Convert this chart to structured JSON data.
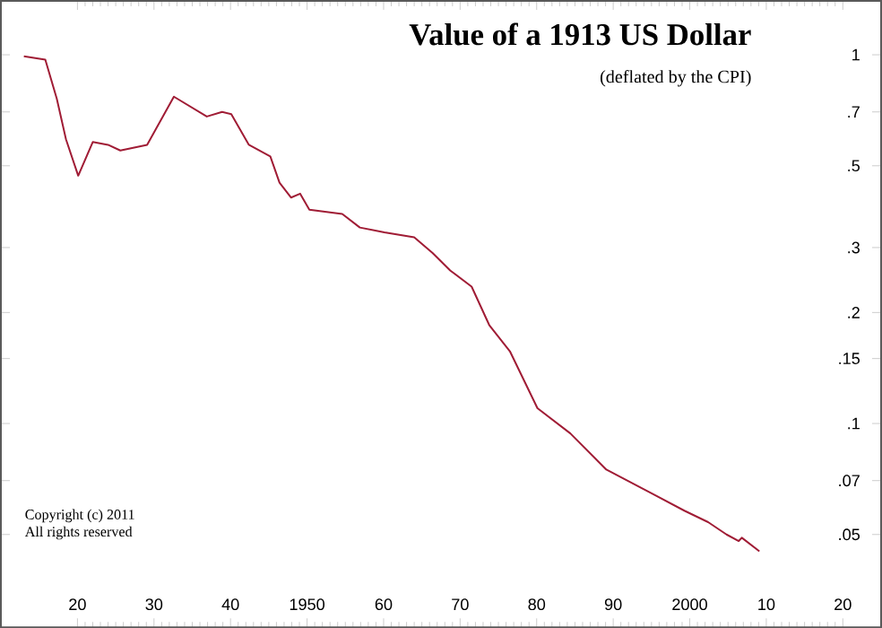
{
  "chart_data": {
    "type": "line",
    "title": "Value of a 1913 US Dollar",
    "subtitle": "(deflated by the CPI)",
    "annotations": [
      "Copyright (c) 2011",
      "All rights reserved"
    ],
    "x": [
      1913,
      1915.8,
      1917.3,
      1918.5,
      1920.1,
      1922,
      1924,
      1925.6,
      1929.1,
      1932.6,
      1936.9,
      1938.9,
      1940.1,
      1942.4,
      1945.2,
      1946.4,
      1947.9,
      1949.1,
      1950.3,
      1954.6,
      1956.9,
      1960.1,
      1964,
      1966.4,
      1968.7,
      1971.5,
      1973.8,
      1976.5,
      1980.1,
      1984.4,
      1989.1,
      1995.4,
      1999.3,
      2002.4,
      2004.8,
      2006.4,
      2006.8,
      2009.1
    ],
    "series": [
      {
        "color": "#a01c35",
        "values": [
          0.99,
          0.97,
          0.76,
          0.59,
          0.47,
          0.58,
          0.57,
          0.55,
          0.57,
          0.77,
          0.68,
          0.7,
          0.69,
          0.57,
          0.53,
          0.45,
          0.41,
          0.42,
          0.38,
          0.37,
          0.34,
          0.33,
          0.32,
          0.29,
          0.26,
          0.235,
          0.185,
          0.157,
          0.11,
          0.094,
          0.075,
          0.064,
          0.058,
          0.054,
          0.05,
          0.048,
          0.049,
          0.045
        ]
      }
    ],
    "log": "y",
    "xlim": [
      1910,
      2025
    ],
    "ylim": [
      0.028,
      1.4
    ],
    "xticks": [
      {
        "value": 1920,
        "label": "20"
      },
      {
        "value": 1930,
        "label": "30"
      },
      {
        "value": 1940,
        "label": "40"
      },
      1950,
      {
        "value": 1960,
        "label": "60"
      },
      {
        "value": 1970,
        "label": "70"
      },
      {
        "value": 1980,
        "label": "80"
      },
      {
        "value": 1990,
        "label": "90"
      },
      2000,
      {
        "value": 2010,
        "label": "10"
      },
      {
        "value": 2020,
        "label": "20"
      }
    ],
    "yticks": [
      1,
      {
        "value": 0.7,
        "label": ".7"
      },
      {
        "value": 0.5,
        "label": ".5"
      },
      {
        "value": 0.3,
        "label": ".3"
      },
      {
        "value": 0.2,
        "label": ".2"
      },
      {
        "value": 0.15,
        "label": ".15"
      },
      {
        "value": 0.1,
        "label": ".1"
      },
      {
        "value": 0.07,
        "label": ".07"
      },
      {
        "value": 0.05,
        "label": ".05"
      }
    ],
    "marker": "none",
    "line_style": "solid"
  }
}
